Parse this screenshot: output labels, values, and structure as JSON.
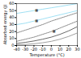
{
  "chart_data": {
    "type": "line",
    "title": "",
    "xlabel": "Temperature (°C)",
    "ylabel": "Absorbed energy (J)",
    "x": [
      -40,
      -30,
      -20,
      -10,
      0,
      10,
      20,
      30
    ],
    "series": [
      {
        "color": "#88d8f0",
        "line_style": "solid",
        "values": [
          46,
          48,
          50,
          52,
          54,
          56,
          58,
          60
        ]
      },
      {
        "color": "#88d8f0",
        "line_style": "solid",
        "values": [
          30,
          32,
          35,
          38,
          41,
          44,
          47,
          50
        ]
      },
      {
        "color": "#666666",
        "line_style": "dotted",
        "values": [
          18,
          22,
          26,
          30,
          35,
          39,
          43,
          47
        ]
      },
      {
        "color": "#666666",
        "line_style": "dotted",
        "values": [
          6,
          9,
          12,
          16,
          20,
          25,
          30,
          35
        ]
      },
      {
        "color": "#444444",
        "line_style": "solid",
        "values": [
          3,
          4.5,
          6.5,
          9,
          12,
          16,
          21,
          27
        ]
      },
      {
        "color": "#888888",
        "line_style": "solid",
        "values": [
          1,
          1.5,
          2.5,
          4,
          6,
          9,
          13,
          18
        ]
      }
    ],
    "annotations": [
      {
        "x": -17,
        "y": 51,
        "text": "■",
        "color": "#555555"
      },
      {
        "x": -17,
        "y": 36,
        "text": "■",
        "color": "#555555"
      },
      {
        "x": 3,
        "y": 21,
        "text": "■",
        "color": "#555555"
      }
    ],
    "xlim": [
      -40,
      30
    ],
    "ylim": [
      0,
      60
    ],
    "xticks": [
      -40,
      -30,
      -20,
      -10,
      0,
      10,
      20,
      30
    ],
    "yticks": [
      0,
      10,
      20,
      30,
      40,
      50,
      60
    ],
    "grid": false
  }
}
